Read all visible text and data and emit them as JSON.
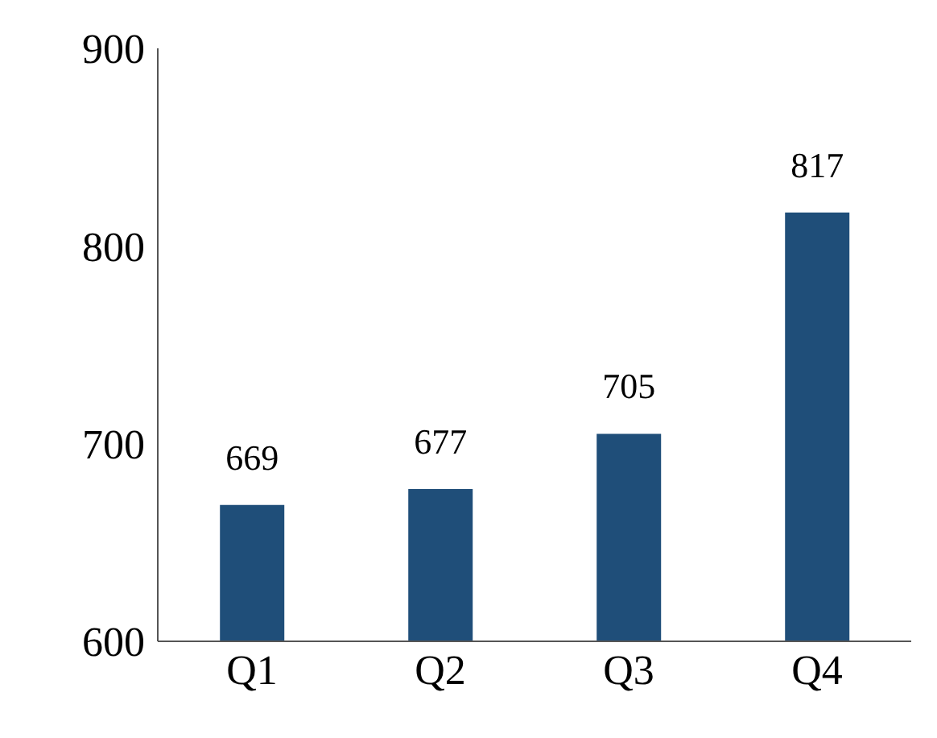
{
  "chart_data": {
    "type": "bar",
    "categories": [
      "Q1",
      "Q2",
      "Q3",
      "Q4"
    ],
    "values": [
      669,
      677,
      705,
      817
    ],
    "color": "#1f4e79",
    "ylim": [
      600,
      900
    ],
    "yticks": [
      600,
      700,
      800,
      900
    ],
    "grid": false,
    "data_labels": true
  }
}
